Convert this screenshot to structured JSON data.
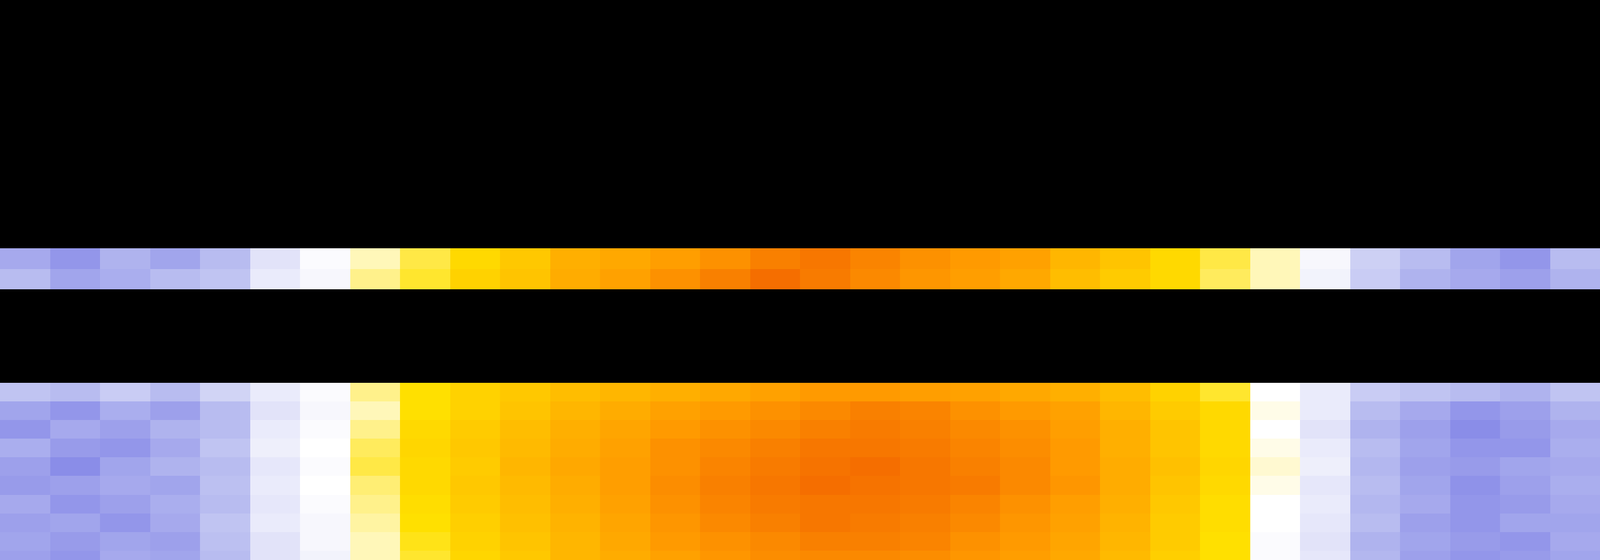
{
  "chart_data": {
    "type": "heatmap",
    "xlim": [
      0,
      32
    ],
    "ylim": [
      0,
      60
    ],
    "zlim": [
      0,
      1
    ],
    "grid": false,
    "tick_labels": false,
    "bands": [
      {
        "y_edges": [
          26.6,
          28.8,
          31.0
        ],
        "z": [
          [
            0.26,
            0.22,
            0.28,
            0.25,
            0.3,
            0.4,
            0.46,
            0.5,
            0.55,
            0.6,
            0.65,
            0.72,
            0.74,
            0.77,
            0.8,
            0.84,
            0.86,
            0.83,
            0.8,
            0.78,
            0.76,
            0.7,
            0.66,
            0.6,
            0.55,
            0.5,
            0.45,
            0.35,
            0.3,
            0.25,
            0.22,
            0.3
          ],
          [
            0.3,
            0.25,
            0.27,
            0.3,
            0.32,
            0.42,
            0.45,
            0.52,
            0.56,
            0.62,
            0.66,
            0.73,
            0.76,
            0.8,
            0.84,
            0.88,
            0.85,
            0.82,
            0.79,
            0.77,
            0.74,
            0.68,
            0.64,
            0.6,
            0.54,
            0.5,
            0.44,
            0.34,
            0.28,
            0.26,
            0.24,
            0.28
          ]
        ]
      },
      {
        "y_edges": [
          41,
          43,
          45,
          47,
          49,
          51,
          53,
          55,
          57,
          59,
          60
        ],
        "z": [
          [
            0.32,
            0.3,
            0.34,
            0.3,
            0.36,
            0.42,
            0.46,
            0.52,
            0.58,
            0.62,
            0.65,
            0.68,
            0.7,
            0.72,
            0.74,
            0.76,
            0.78,
            0.78,
            0.77,
            0.76,
            0.74,
            0.72,
            0.68,
            0.62,
            0.56,
            0.47,
            0.42,
            0.34,
            0.32,
            0.3,
            0.28,
            0.32
          ],
          [
            0.25,
            0.22,
            0.27,
            0.24,
            0.3,
            0.4,
            0.45,
            0.5,
            0.58,
            0.62,
            0.66,
            0.7,
            0.73,
            0.76,
            0.78,
            0.8,
            0.82,
            0.84,
            0.83,
            0.8,
            0.78,
            0.76,
            0.7,
            0.64,
            0.6,
            0.48,
            0.42,
            0.3,
            0.26,
            0.22,
            0.24,
            0.28
          ],
          [
            0.22,
            0.26,
            0.24,
            0.28,
            0.3,
            0.42,
            0.46,
            0.52,
            0.6,
            0.64,
            0.68,
            0.72,
            0.75,
            0.78,
            0.8,
            0.82,
            0.84,
            0.85,
            0.84,
            0.82,
            0.8,
            0.77,
            0.72,
            0.66,
            0.6,
            0.47,
            0.4,
            0.28,
            0.24,
            0.2,
            0.23,
            0.26
          ],
          [
            0.27,
            0.23,
            0.22,
            0.26,
            0.32,
            0.43,
            0.47,
            0.54,
            0.61,
            0.65,
            0.69,
            0.73,
            0.76,
            0.8,
            0.82,
            0.84,
            0.86,
            0.86,
            0.85,
            0.83,
            0.81,
            0.78,
            0.72,
            0.66,
            0.6,
            0.48,
            0.42,
            0.3,
            0.25,
            0.22,
            0.22,
            0.27
          ],
          [
            0.24,
            0.2,
            0.25,
            0.28,
            0.3,
            0.41,
            0.46,
            0.55,
            0.6,
            0.64,
            0.7,
            0.74,
            0.77,
            0.8,
            0.83,
            0.85,
            0.87,
            0.88,
            0.86,
            0.84,
            0.82,
            0.78,
            0.73,
            0.67,
            0.61,
            0.49,
            0.43,
            0.29,
            0.24,
            0.23,
            0.25,
            0.26
          ],
          [
            0.23,
            0.24,
            0.26,
            0.25,
            0.31,
            0.42,
            0.47,
            0.53,
            0.6,
            0.65,
            0.69,
            0.73,
            0.77,
            0.81,
            0.84,
            0.86,
            0.88,
            0.87,
            0.86,
            0.85,
            0.82,
            0.79,
            0.73,
            0.66,
            0.6,
            0.48,
            0.41,
            0.3,
            0.25,
            0.21,
            0.24,
            0.27
          ],
          [
            0.26,
            0.22,
            0.24,
            0.27,
            0.3,
            0.41,
            0.46,
            0.52,
            0.59,
            0.64,
            0.68,
            0.72,
            0.76,
            0.8,
            0.83,
            0.85,
            0.86,
            0.86,
            0.85,
            0.83,
            0.8,
            0.77,
            0.72,
            0.65,
            0.59,
            0.47,
            0.42,
            0.29,
            0.26,
            0.22,
            0.23,
            0.26
          ],
          [
            0.24,
            0.25,
            0.22,
            0.26,
            0.32,
            0.42,
            0.45,
            0.51,
            0.58,
            0.63,
            0.67,
            0.71,
            0.75,
            0.79,
            0.82,
            0.84,
            0.86,
            0.85,
            0.84,
            0.82,
            0.79,
            0.76,
            0.71,
            0.64,
            0.59,
            0.47,
            0.41,
            0.3,
            0.24,
            0.22,
            0.25,
            0.25
          ],
          [
            0.25,
            0.23,
            0.25,
            0.24,
            0.31,
            0.4,
            0.45,
            0.5,
            0.57,
            0.62,
            0.66,
            0.7,
            0.74,
            0.78,
            0.8,
            0.82,
            0.84,
            0.84,
            0.83,
            0.8,
            0.78,
            0.75,
            0.7,
            0.64,
            0.58,
            0.46,
            0.4,
            0.28,
            0.25,
            0.23,
            0.22,
            0.26
          ],
          [
            0.24,
            0.22,
            0.26,
            0.25,
            0.3,
            0.4,
            0.44,
            0.5,
            0.56,
            0.61,
            0.65,
            0.7,
            0.73,
            0.76,
            0.79,
            0.81,
            0.82,
            0.82,
            0.81,
            0.79,
            0.77,
            0.74,
            0.69,
            0.63,
            0.58,
            0.46,
            0.41,
            0.29,
            0.24,
            0.22,
            0.23,
            0.25
          ]
        ]
      }
    ]
  }
}
